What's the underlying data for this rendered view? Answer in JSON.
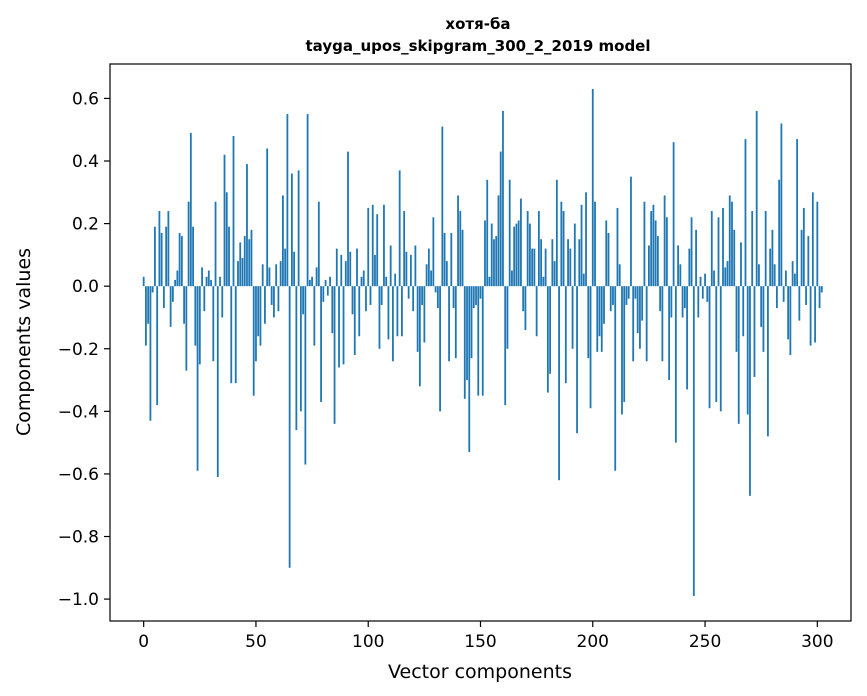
{
  "chart_data": {
    "type": "bar",
    "title": "хотя-ба",
    "subtitle": "tayga_upos_skipgram_300_2_2019 model",
    "xlabel": "Vector components",
    "ylabel": "Components values",
    "xlim": [
      -15,
      315
    ],
    "ylim": [
      -1.07,
      0.71
    ],
    "xticks": [
      0,
      50,
      100,
      150,
      200,
      250,
      300
    ],
    "yticks": [
      -1.0,
      -0.8,
      -0.6,
      -0.4,
      -0.2,
      0.0,
      0.2,
      0.4,
      0.6
    ],
    "ytick_labels": [
      "−1.0",
      "−0.8",
      "−0.6",
      "−0.4",
      "−0.2",
      "0.0",
      "0.2",
      "0.4",
      "0.6"
    ],
    "grid": false,
    "bar_color": "#1f77b4",
    "values": [
      0.03,
      -0.19,
      -0.12,
      -0.43,
      -0.02,
      0.19,
      -0.38,
      0.24,
      0.17,
      -0.07,
      0.19,
      0.24,
      -0.13,
      -0.05,
      0.02,
      0.05,
      0.17,
      0.16,
      -0.12,
      -0.27,
      0.27,
      0.49,
      0.19,
      -0.19,
      -0.59,
      -0.25,
      0.06,
      -0.08,
      0.03,
      0.05,
      0.02,
      -0.24,
      0.27,
      -0.61,
      0.03,
      -0.1,
      0.42,
      0.3,
      0.19,
      -0.31,
      0.48,
      -0.31,
      0.08,
      0.14,
      0.09,
      0.16,
      0.39,
      0.15,
      0.18,
      -0.35,
      -0.24,
      -0.16,
      -0.19,
      0.07,
      -0.12,
      0.44,
      0.06,
      -0.06,
      -0.1,
      0.07,
      -0.08,
      0.08,
      0.29,
      0.12,
      0.55,
      -0.9,
      0.36,
      0.11,
      -0.46,
      0.37,
      -0.4,
      -0.09,
      -0.57,
      0.55,
      0.02,
      0.03,
      -0.19,
      0.06,
      0.27,
      -0.37,
      -0.05,
      0.02,
      -0.03,
      0.03,
      -0.15,
      -0.44,
      0.12,
      -0.26,
      0.1,
      -0.25,
      0.08,
      0.43,
      0.11,
      -0.09,
      -0.22,
      0.12,
      -0.16,
      0.03,
      0.05,
      -0.08,
      0.25,
      -0.06,
      0.26,
      0.1,
      0.23,
      -0.2,
      -0.06,
      0.26,
      0.03,
      -0.17,
      0.13,
      -0.24,
      0.04,
      -0.16,
      0.37,
      -0.16,
      0.24,
      0.11,
      -0.04,
      0.1,
      -0.08,
      0.13,
      -0.21,
      -0.32,
      -0.06,
      -0.18,
      0.07,
      0.12,
      0.05,
      0.22,
      -0.02,
      -0.07,
      -0.4,
      0.51,
      0.17,
      0.08,
      -0.24,
      0.17,
      -0.07,
      -0.23,
      0.29,
      0.24,
      0.18,
      -0.36,
      -0.3,
      -0.53,
      -0.23,
      -0.07,
      -0.06,
      -0.35,
      -0.04,
      -0.35,
      0.21,
      0.34,
      0.03,
      0.2,
      0.15,
      0.16,
      0.29,
      0.43,
      0.56,
      -0.38,
      -0.2,
      0.34,
      0.05,
      0.19,
      0.2,
      0.21,
      0.28,
      -0.08,
      -0.14,
      0.24,
      0.2,
      0.12,
      0.12,
      -0.16,
      0.24,
      0.15,
      0.03,
      0.12,
      -0.34,
      -0.28,
      0.15,
      0.08,
      0.34,
      -0.62,
      0.27,
      0.24,
      -0.31,
      0.15,
      0.12,
      -0.2,
      0.2,
      -0.47,
      0.15,
      0.26,
      0.04,
      0.3,
      -0.23,
      -0.39,
      0.63,
      0.27,
      -0.21,
      -0.16,
      -0.21,
      -0.12,
      0.21,
      0.17,
      -0.08,
      -0.06,
      -0.59,
      0.25,
      0.07,
      -0.41,
      -0.37,
      -0.06,
      -0.04,
      0.35,
      -0.24,
      -0.04,
      -0.15,
      -0.2,
      -0.11,
      0.27,
      -0.24,
      0.13,
      0.24,
      0.26,
      0.21,
      0.16,
      -0.08,
      -0.24,
      0.29,
      0.22,
      -0.3,
      -0.1,
      0.46,
      -0.5,
      0.13,
      0.07,
      -0.1,
      -0.07,
      -0.33,
      0.12,
      0.22,
      -0.99,
      0.18,
      -0.1,
      0.03,
      -0.04,
      0.04,
      -0.05,
      -0.39,
      0.24,
      0.05,
      -0.37,
      0.22,
      -0.4,
      0.25,
      0.06,
      0.08,
      0.29,
      0.27,
      0.18,
      -0.21,
      -0.44,
      0.14,
      -0.16,
      0.47,
      -0.41,
      -0.67,
      0.24,
      -0.29,
      0.56,
      0.07,
      -0.13,
      -0.21,
      0.24,
      -0.48,
      0.12,
      0.18,
      0.07,
      -0.07,
      0.34,
      0.52,
      -0.05,
      0.05,
      -0.17,
      -0.22,
      0.08,
      0.04,
      0.47,
      -0.11,
      0.18,
      0.25,
      -0.06,
      0.16,
      -0.19,
      0.3,
      -0.18,
      0.27,
      -0.07,
      -0.02
    ]
  }
}
